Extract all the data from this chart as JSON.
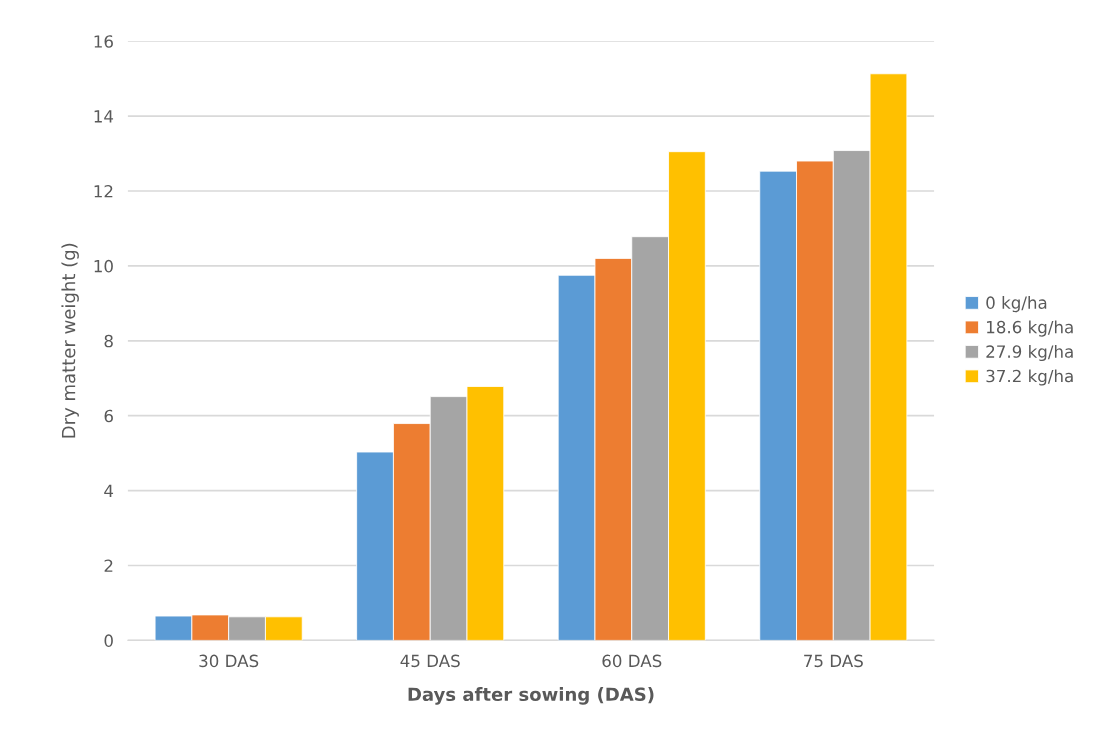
{
  "chart_data": {
    "type": "bar",
    "xlabel": "Days after sowing (DAS)",
    "ylabel": "Dry matter weight (g)",
    "categories": [
      "30 DAS",
      "45 DAS",
      "60 DAS",
      "75 DAS"
    ],
    "series": [
      {
        "name": "0 kg/ha",
        "color": "#5b9bd5",
        "values": [
          0.65,
          5.03,
          9.75,
          12.53
        ]
      },
      {
        "name": "18.6 kg/ha",
        "color": "#ed7d31",
        "values": [
          0.68,
          5.79,
          10.2,
          12.8
        ]
      },
      {
        "name": "27.9 kg/ha",
        "color": "#a5a5a5",
        "values": [
          0.63,
          6.51,
          10.78,
          13.08
        ]
      },
      {
        "name": "37.2 kg/ha",
        "color": "#ffc000",
        "values": [
          0.63,
          6.78,
          13.05,
          15.13
        ]
      }
    ],
    "ylim": [
      0,
      16
    ],
    "yticks": [
      0,
      2,
      4,
      6,
      8,
      10,
      12,
      14,
      16
    ],
    "grid": "y",
    "legend": "right"
  }
}
